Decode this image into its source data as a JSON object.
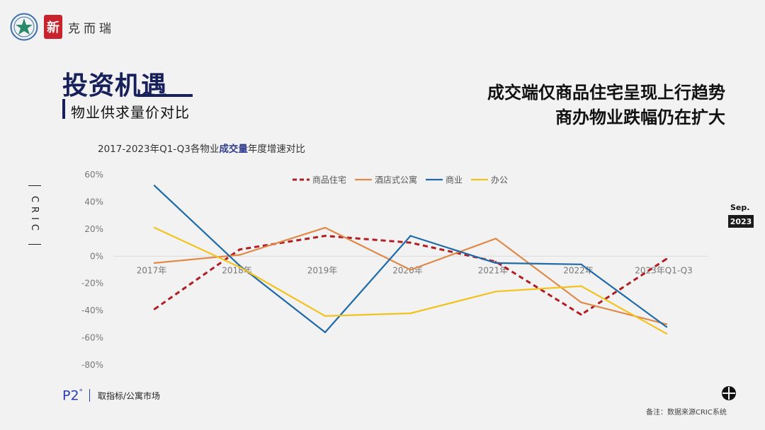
{
  "header": {
    "brand_seal": "新",
    "brand_text": "克而瑞",
    "title": "投资机遇",
    "subtitle": "物业供求量价对比",
    "headline_1": "成交端仅商品住宅呈现上行趋势",
    "headline_2": "商办物业跌幅仍在扩大"
  },
  "side": {
    "cric": "CRIC",
    "month": "Sep.",
    "year": "2023"
  },
  "footer": {
    "page": "P2",
    "source": "取指标/公寓市场",
    "note": "备注：数据来源CRIC系统"
  },
  "chart_data": {
    "type": "line",
    "title_prefix": "2017-2023年Q1-Q3各物业",
    "title_highlight": "成交量",
    "title_suffix": "年度增速对比",
    "categories": [
      "2017年",
      "2018年",
      "2019年",
      "2020年",
      "2021年",
      "2022年",
      "2023年Q1-Q3"
    ],
    "yticks": [
      "60%",
      "40%",
      "20%",
      "0%",
      "-20%",
      "-40%",
      "-60%",
      "-80%"
    ],
    "ylim": [
      -80,
      60
    ],
    "legend_position": "top",
    "series": [
      {
        "name": "商品住宅",
        "color": "#b01e23",
        "dashed": true,
        "values": [
          -39,
          5,
          15,
          10,
          -4,
          -43,
          -2
        ]
      },
      {
        "name": "酒店式公寓",
        "color": "#e08a4a",
        "dashed": false,
        "values": [
          -5,
          1,
          21,
          -10,
          13,
          -34,
          -50
        ]
      },
      {
        "name": "商业",
        "color": "#1f6aa8",
        "dashed": false,
        "values": [
          52,
          -7,
          -56,
          15,
          -5,
          -6,
          -52
        ]
      },
      {
        "name": "办公",
        "color": "#f2c31c",
        "dashed": false,
        "values": [
          21,
          -8,
          -44,
          -42,
          -26,
          -22,
          -57
        ]
      }
    ]
  }
}
